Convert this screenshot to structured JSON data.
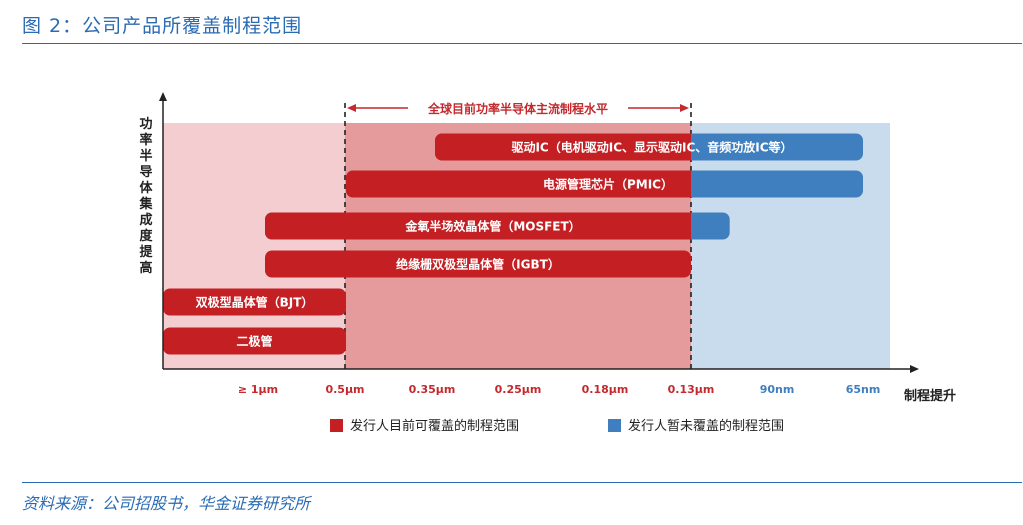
{
  "header": {
    "title": "图 2：公司产品所覆盖制程范围"
  },
  "footer": {
    "source": "资料来源：公司招股书，华金证券研究所"
  },
  "colors": {
    "covered": "#c41f23",
    "uncovered": "#3f7fbf",
    "band_left": "#f4cdd0",
    "band_mid": "#e59a9b",
    "band_right": "#c9dcee"
  },
  "chart_data": {
    "type": "bar",
    "orientation": "horizontal-range",
    "ylabel": "功率半导体集成度提高",
    "xlabel": "制程提升",
    "x_categories": [
      "≥ 1μm",
      "0.5μm",
      "0.35μm",
      "0.25μm",
      "0.18μm",
      "0.13μm",
      "90nm",
      "65nm"
    ],
    "mainstream_range": {
      "label": "全球目前功率半导体主流制程水平",
      "from": "0.5μm",
      "to": "0.13μm"
    },
    "legend": [
      {
        "key": "covered",
        "label": "发行人目前可覆盖的制程范围"
      },
      {
        "key": "uncovered",
        "label": "发行人暂未覆盖的制程范围"
      }
    ],
    "bars": [
      {
        "label": "驱动IC（电机驱动IC、显示驱动IC、音频功放IC等）",
        "covered_from": 1.5,
        "covered_to": 5,
        "uncovered_to": 7
      },
      {
        "label": "电源管理芯片（PMIC）",
        "covered_from": 1,
        "covered_to": 5,
        "uncovered_to": 7
      },
      {
        "label": "金氧半场效晶体管（MOSFET）",
        "covered_from": 0.5,
        "covered_to": 5,
        "uncovered_to": 5.45
      },
      {
        "label": "绝缘栅双极型晶体管（IGBT）",
        "covered_from": 0.5,
        "covered_to": 5,
        "uncovered_to": null
      },
      {
        "label": "双极型晶体管（BJT）",
        "covered_from": 0,
        "covered_to": 1,
        "uncovered_to": null
      },
      {
        "label": "二极管",
        "covered_from": 0,
        "covered_to": 1,
        "uncovered_to": null
      }
    ]
  }
}
